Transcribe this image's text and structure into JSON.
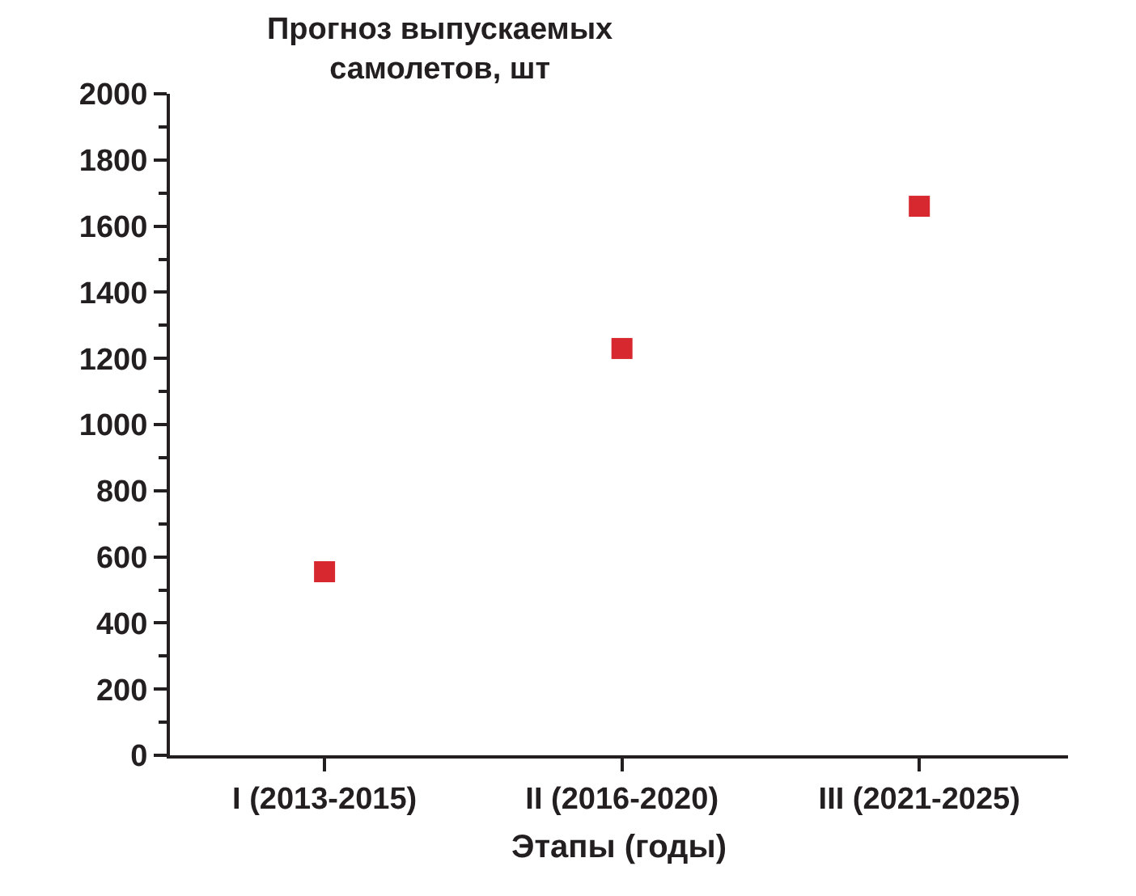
{
  "chart_data": {
    "type": "scatter",
    "ylabel": "Прогноз выпускаемых\nсамолетов, шт",
    "xlabel": "Этапы (годы)",
    "categories": [
      "I (2013-2015)",
      "II (2016-2020)",
      "III (2021-2025)"
    ],
    "series": [
      {
        "color": "#d7282f",
        "values": [
          555,
          1230,
          1660
        ]
      }
    ],
    "ylim": [
      0,
      2000
    ],
    "yticks": [
      0,
      200,
      400,
      600,
      800,
      1000,
      1200,
      1400,
      1600,
      1800,
      2000
    ],
    "marker": "square"
  }
}
